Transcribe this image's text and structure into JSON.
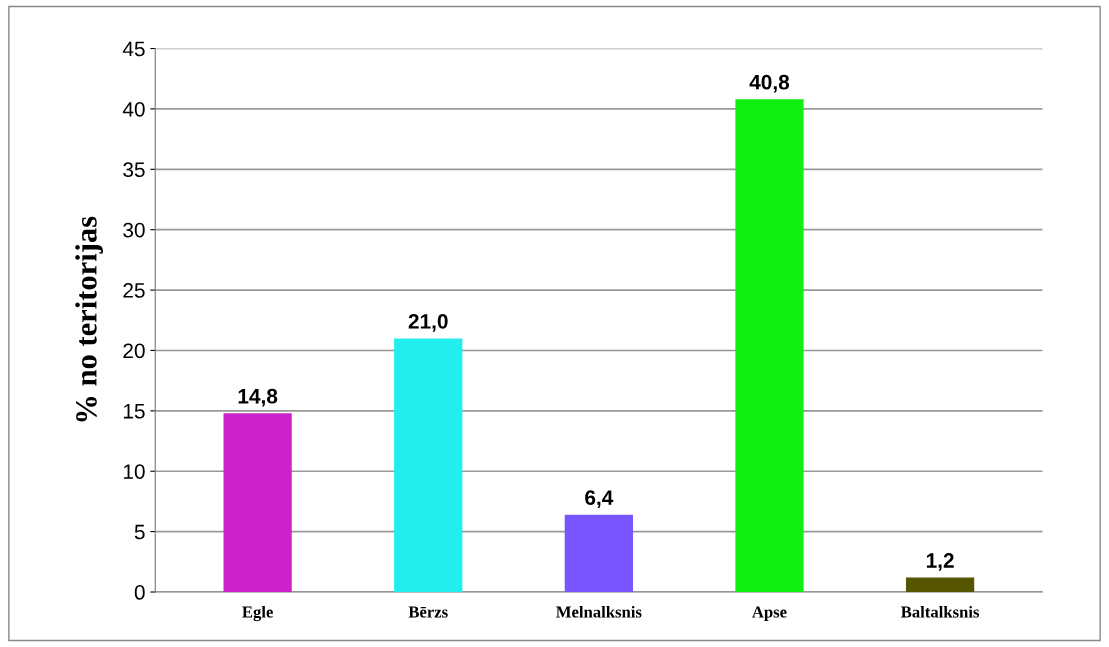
{
  "chart_data": {
    "type": "bar",
    "ylabel": "% no teritorijas",
    "categories": [
      "Egle",
      "Bērzs",
      "Melnalksnis",
      "Apse",
      "Baltalksnis"
    ],
    "values": [
      14.8,
      21.0,
      6.4,
      40.8,
      1.2
    ],
    "colors": [
      "#cc22cc",
      "#22eeee",
      "#7755ff",
      "#11ee11",
      "#555500"
    ],
    "value_labels": [
      "14,8",
      "21,0",
      "6,4",
      "40,8",
      "1,2"
    ],
    "ylim": [
      0,
      45
    ],
    "yticks": [
      0,
      5,
      10,
      15,
      20,
      25,
      30,
      35,
      40,
      45
    ],
    "grid": "y",
    "legend": false
  }
}
